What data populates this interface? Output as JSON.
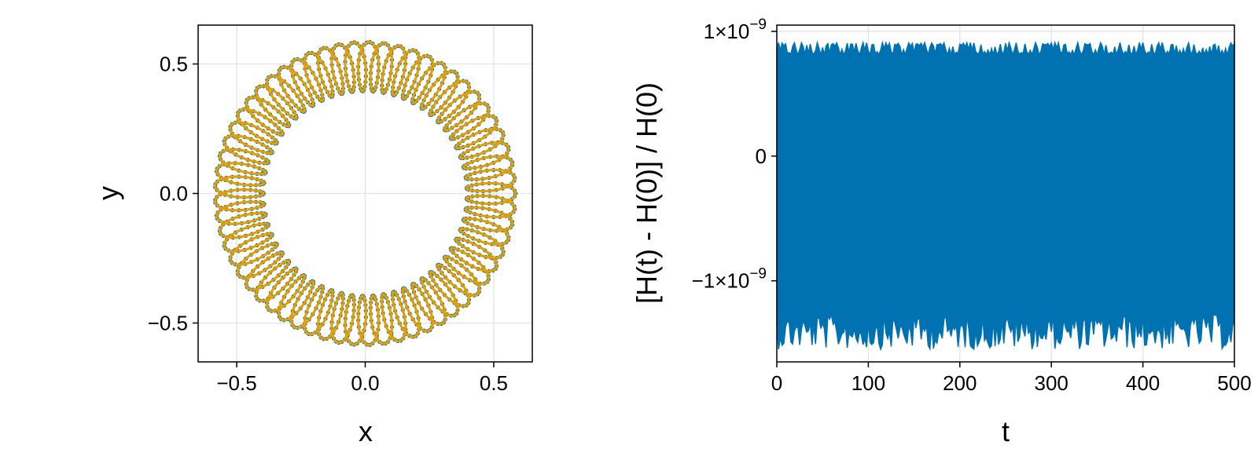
{
  "colors": {
    "orbit_points": "#0072b2",
    "orbit_line": "#e69f00",
    "energy": "#0072b2",
    "grid": "#e2e2e2"
  },
  "chart_data": [
    {
      "type": "line",
      "description_source": "left panel: trajectory in the x-y plane (rosette orbit)",
      "xlabel": "x",
      "ylabel": "y",
      "xlim": [
        -0.65,
        0.65
      ],
      "ylim": [
        -0.65,
        0.65
      ],
      "xticks": [
        -0.5,
        0.0,
        0.5
      ],
      "xtick_labels": [
        "−0.5",
        "0.0",
        "0.5"
      ],
      "yticks": [
        -0.5,
        0.0,
        0.5
      ],
      "ytick_labels": [
        "−0.5",
        "0.0",
        "0.5"
      ],
      "grid": true,
      "orbit": {
        "r_min": 0.395,
        "r_max": 0.585,
        "lobes": 61
      },
      "series": [
        {
          "values": "scatter of sampled orbit points",
          "style": "markers"
        },
        {
          "values": "continuous orbit path",
          "style": "line"
        }
      ]
    },
    {
      "type": "line",
      "xlabel": "t",
      "ylabel": "[H(t) - H(0)] / H(0)",
      "xlim": [
        0,
        500
      ],
      "ylim": [
        -1.65e-09,
        1.05e-09
      ],
      "xticks": [
        0,
        100,
        200,
        300,
        400,
        500
      ],
      "xtick_labels": [
        "0",
        "100",
        "200",
        "300",
        "400",
        "500"
      ],
      "yticks": [
        1e-09,
        0,
        -1e-09
      ],
      "ytick_labels": [
        {
          "base": "1×10",
          "exp": "−9"
        },
        {
          "base": "0",
          "exp": ""
        },
        {
          "base": "−1×10",
          "exp": "−9"
        }
      ],
      "grid": true,
      "series": [
        {
          "x_range": [
            0,
            500
          ],
          "band": {
            "upper_min": 8e-10,
            "upper_max": 9.1e-10,
            "lower_min": -1.55e-09,
            "lower_max": -1.12e-09
          }
        }
      ]
    }
  ]
}
